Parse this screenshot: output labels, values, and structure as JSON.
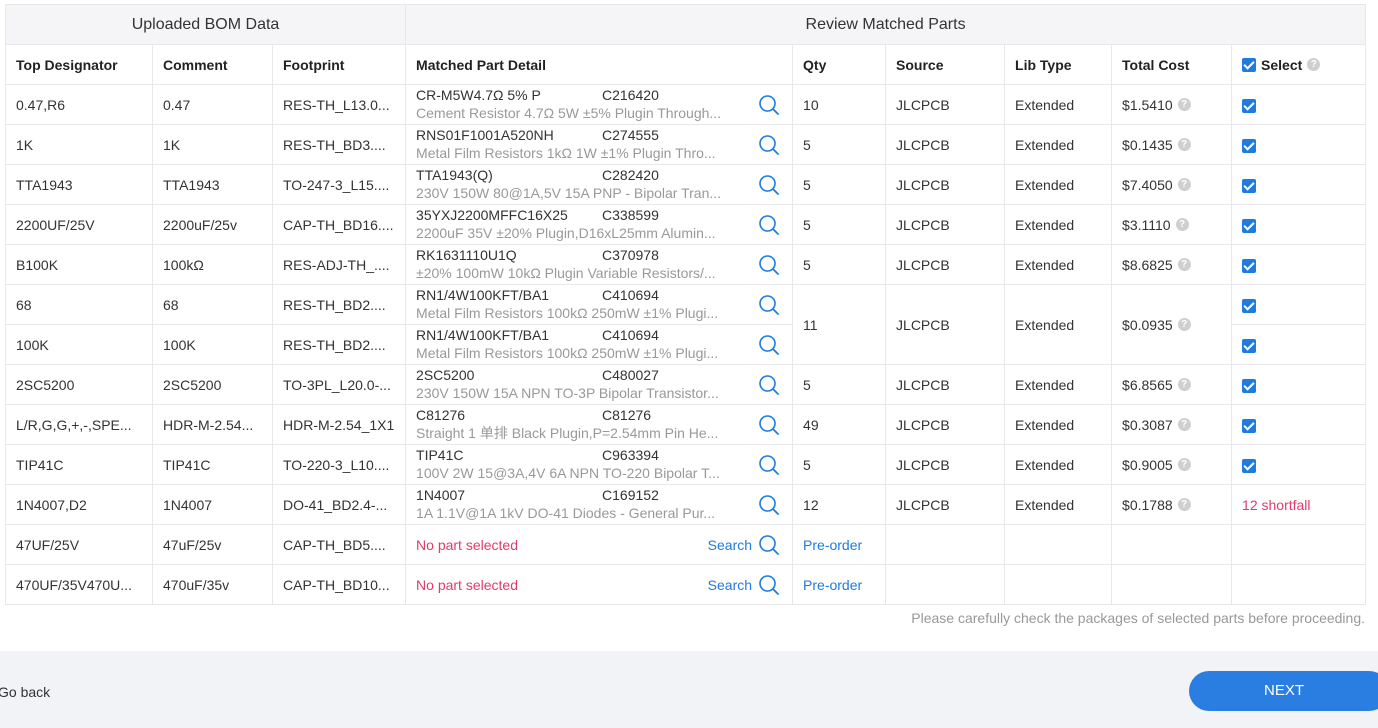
{
  "group_headers": {
    "left": "Uploaded BOM Data",
    "right": "Review Matched Parts"
  },
  "columns": {
    "top_designator": "Top Designator",
    "comment": "Comment",
    "footprint": "Footprint",
    "matched_part_detail": "Matched Part Detail",
    "qty": "Qty",
    "source": "Source",
    "lib_type": "Lib Type",
    "total_cost": "Total Cost",
    "select": "Select"
  },
  "rows": [
    {
      "designator": "0.47,R6",
      "comment": "0.47",
      "footprint": "RES-TH_L13.0...",
      "part": "CR-M5W4.7Ω 5% P",
      "code": "C216420",
      "desc": "Cement Resistor 4.7Ω 5W ±5% Plugin Through...",
      "qty": "10",
      "source": "JLCPCB",
      "lib": "Extended",
      "cost": "$1.5410",
      "selected": true
    },
    {
      "designator": "1K",
      "comment": "1K",
      "footprint": "RES-TH_BD3....",
      "part": "RNS01F1001A520NH",
      "code": "C274555",
      "desc": "Metal Film Resistors 1kΩ 1W ±1% Plugin Thro...",
      "qty": "5",
      "source": "JLCPCB",
      "lib": "Extended",
      "cost": "$0.1435",
      "selected": true
    },
    {
      "designator": "TTA1943",
      "comment": "TTA1943",
      "footprint": "TO-247-3_L15....",
      "part": "TTA1943(Q)",
      "code": "C282420",
      "desc": "230V 150W 80@1A,5V 15A PNP - Bipolar Tran...",
      "qty": "5",
      "source": "JLCPCB",
      "lib": "Extended",
      "cost": "$7.4050",
      "selected": true
    },
    {
      "designator": "2200UF/25V",
      "comment": "2200uF/25v",
      "footprint": "CAP-TH_BD16....",
      "part": "35YXJ2200MFFC16X25",
      "code": "C338599",
      "desc": "2200uF 35V ±20% Plugin,D16xL25mm Alumin...",
      "qty": "5",
      "source": "JLCPCB",
      "lib": "Extended",
      "cost": "$3.1110",
      "selected": true
    },
    {
      "designator": "B100K",
      "comment": "100kΩ",
      "footprint": "RES-ADJ-TH_....",
      "part": "RK1631110U1Q",
      "code": "C370978",
      "desc": "±20% 100mW 10kΩ Plugin Variable Resistors/...",
      "qty": "5",
      "source": "JLCPCB",
      "lib": "Extended",
      "cost": "$8.6825",
      "selected": true
    },
    {
      "designator": "68",
      "comment": "68",
      "footprint": "RES-TH_BD2....",
      "part": "RN1/4W100KFT/BA1",
      "code": "C410694",
      "desc": "Metal Film Resistors 100kΩ 250mW ±1% Plugi...",
      "qty": "11",
      "source": "JLCPCB",
      "lib": "Extended",
      "cost": "$0.0935",
      "selected": true
    },
    {
      "designator": "100K",
      "comment": "100K",
      "footprint": "RES-TH_BD2....",
      "part": "RN1/4W100KFT/BA1",
      "code": "C410694",
      "desc": "Metal Film Resistors 100kΩ 250mW ±1% Plugi...",
      "selected": true
    },
    {
      "designator": "2SC5200",
      "comment": "2SC5200",
      "footprint": "TO-3PL_L20.0-...",
      "part": "2SC5200",
      "code": "C480027",
      "desc": "230V 150W 15A NPN TO-3P Bipolar Transistor...",
      "qty": "5",
      "source": "JLCPCB",
      "lib": "Extended",
      "cost": "$6.8565",
      "selected": true
    },
    {
      "designator": "L/R,G,G,+,-,SPE...",
      "comment": "HDR-M-2.54...",
      "footprint": "HDR-M-2.54_1X1",
      "part": "C81276",
      "code": "C81276",
      "desc": "Straight 1 单排 Black Plugin,P=2.54mm Pin He...",
      "qty": "49",
      "source": "JLCPCB",
      "lib": "Extended",
      "cost": "$0.3087",
      "selected": true
    },
    {
      "designator": "TIP41C",
      "comment": "TIP41C",
      "footprint": "TO-220-3_L10....",
      "part": "TIP41C",
      "code": "C963394",
      "desc": "100V 2W 15@3A,4V 6A NPN TO-220 Bipolar T...",
      "qty": "5",
      "source": "JLCPCB",
      "lib": "Extended",
      "cost": "$0.9005",
      "selected": true
    },
    {
      "designator": "1N4007,D2",
      "comment": "1N4007",
      "footprint": "DO-41_BD2.4-...",
      "part": "1N4007",
      "code": "C169152",
      "desc": "1A 1.1V@1A 1kV DO-41 Diodes - General Pur...",
      "qty": "12",
      "source": "JLCPCB",
      "lib": "Extended",
      "cost": "$0.1788",
      "shortfall": "12 shortfall"
    },
    {
      "designator": "47UF/25V",
      "comment": "47uF/25v",
      "footprint": "CAP-TH_BD5....",
      "no_part": "No part selected",
      "search": "Search",
      "preorder": "Pre-order"
    },
    {
      "designator": "470UF/35V470U...",
      "comment": "470uF/35v",
      "footprint": "CAP-TH_BD10...",
      "no_part": "No part selected",
      "search": "Search",
      "preorder": "Pre-order"
    }
  ],
  "note": "Please carefully check the packages of selected parts before proceeding.",
  "footer": {
    "go_back": "Go back",
    "next": "NEXT"
  },
  "colors": {
    "accent": "#2a7de1",
    "error": "#e03a6a",
    "muted": "#999999"
  }
}
